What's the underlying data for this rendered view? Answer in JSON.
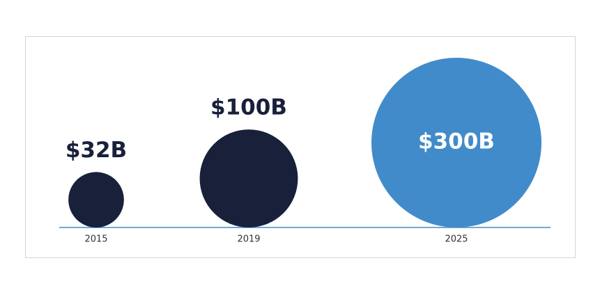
{
  "chart_data": {
    "type": "bubble",
    "categories": [
      "2015",
      "2019",
      "2025"
    ],
    "values": [
      32,
      100,
      300
    ],
    "value_labels": [
      "$32B",
      "$100B",
      "$300B"
    ],
    "colors": [
      "#18203a",
      "#18203a",
      "#418bca"
    ]
  }
}
